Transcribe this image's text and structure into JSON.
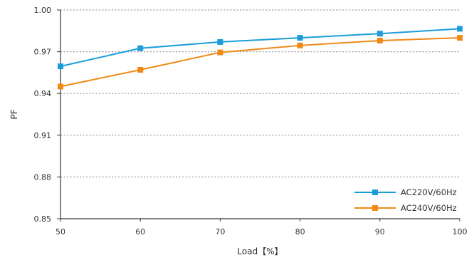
{
  "chart_data": {
    "type": "line",
    "title": "",
    "xlabel": "Load【%】",
    "ylabel": "PF",
    "x": [
      50,
      60,
      70,
      80,
      90,
      100
    ],
    "x_tick_labels": [
      "50",
      "60",
      "70",
      "80",
      "90",
      "100"
    ],
    "y_tick_labels": [
      "0.85",
      "0.88",
      "0.91",
      "0.94",
      "0.97",
      "1.00"
    ],
    "y_ticks": [
      0.85,
      0.88,
      0.91,
      0.94,
      0.97,
      1.0
    ],
    "xlim": [
      50,
      100
    ],
    "ylim": [
      0.85,
      1.0
    ],
    "grid": "horizontal dotted",
    "legend_position": "bottom-right",
    "series": [
      {
        "name": "AC220V/60Hz",
        "color": "#1b9ddb",
        "values": [
          0.9595,
          0.9725,
          0.977,
          0.98,
          0.983,
          0.9865
        ]
      },
      {
        "name": "AC240V/60Hz",
        "color": "#ef8a17",
        "values": [
          0.945,
          0.957,
          0.9695,
          0.9745,
          0.978,
          0.98
        ]
      }
    ]
  }
}
